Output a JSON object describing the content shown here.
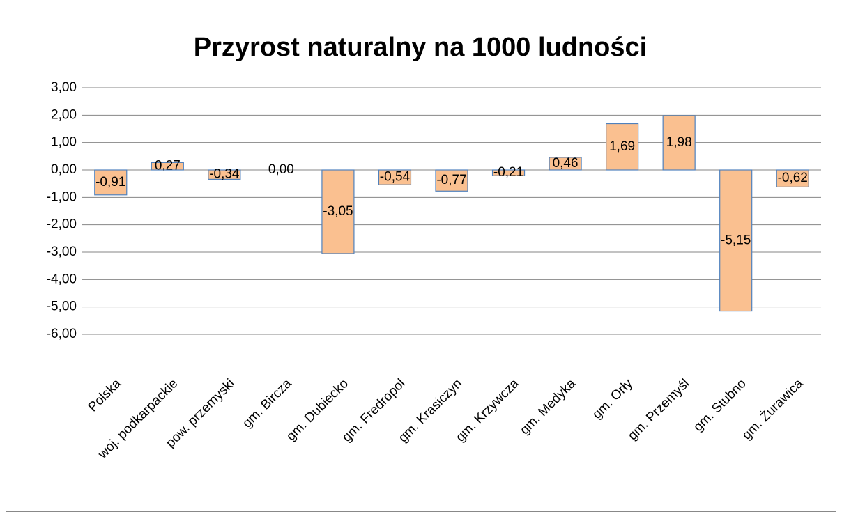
{
  "chart_data": {
    "type": "bar",
    "title": "Przyrost naturalny na 1000 ludności",
    "categories": [
      "Polska",
      "woj. podkarpackie",
      "pow. przemyski",
      "gm. Bircza",
      "gm. Dubiecko",
      "gm. Fredropol",
      "gm. Krasiczyn",
      "gm. Krzywcza",
      "gm. Medyka",
      "gm. Orły",
      "gm. Przemyśl",
      "gm. Stubno",
      "gm. Żurawica"
    ],
    "values": [
      -0.91,
      0.27,
      -0.34,
      0,
      -3.05,
      -0.54,
      -0.77,
      -0.21,
      0.46,
      1.69,
      1.98,
      -5.15,
      -0.62
    ],
    "value_labels": [
      "-0,91",
      "0,27",
      "-0,34",
      "0,00",
      "-3,05",
      "-0,54",
      "-0,77",
      "-0,21",
      "0,46",
      "1,69",
      "1,98",
      "-5,15",
      "-0,62"
    ],
    "color": "#fac090",
    "edge_color": "#4f81bd",
    "ylim": [
      -6,
      3
    ],
    "yticks": [
      {
        "value": 3,
        "label": "3,00"
      },
      {
        "value": 2,
        "label": "2,00"
      },
      {
        "value": 1,
        "label": "1,00"
      },
      {
        "value": 0,
        "label": "0,00"
      },
      {
        "value": -1,
        "label": "-1,00"
      },
      {
        "value": -2,
        "label": "-2,00"
      },
      {
        "value": -3,
        "label": "-3,00"
      },
      {
        "value": -4,
        "label": "-4,00"
      },
      {
        "value": -5,
        "label": "-5,00"
      },
      {
        "value": -6,
        "label": "-6,00"
      }
    ],
    "grid": true
  }
}
